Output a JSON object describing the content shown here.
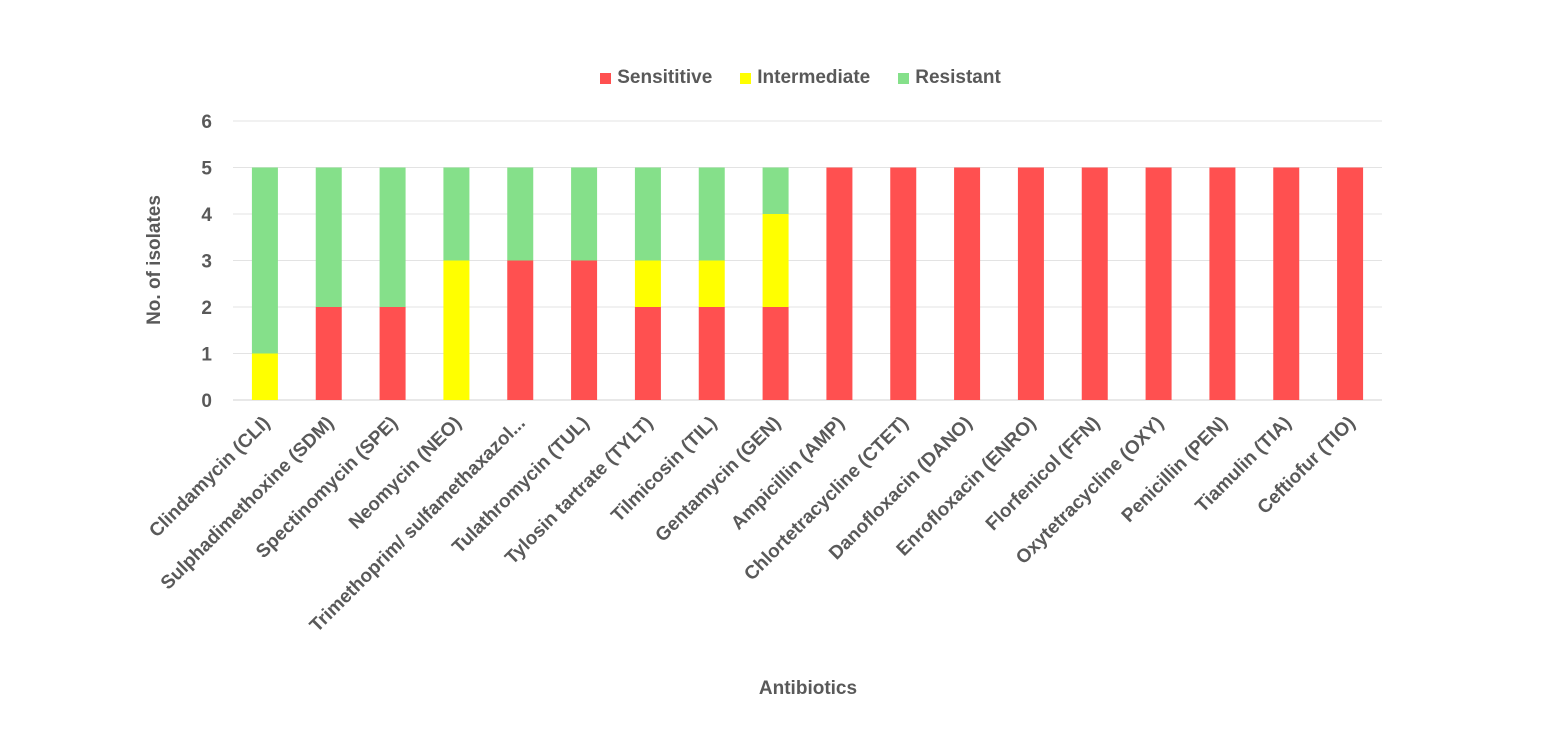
{
  "chart_data": {
    "type": "bar",
    "stacked": true,
    "title": "",
    "xlabel": "Antibiotics",
    "ylabel": "No. of isolates",
    "ylim": [
      0,
      6
    ],
    "yticks": [
      0,
      1,
      2,
      3,
      4,
      5,
      6
    ],
    "grid": true,
    "legend_position": "top",
    "categories": [
      "Clindamycin (CLI)",
      "Sulphadimethoxine (SDM)",
      "Spectinomycin (SPE)",
      "Neomycin (NEO)",
      "Trimethoprim/ sulfamethaxazol...",
      "Tulathromycin (TUL)",
      "Tylosin tartrate (TYLT)",
      "Tilmicosin (TIL)",
      "Gentamycin (GEN)",
      "Ampicillin  (AMP)",
      "Chlortetracycline (CTET)",
      "Danofloxacin (DANO)",
      "Enrofloxacin (ENRO)",
      "Florfenicol (FFN)",
      "Oxytetracycline (OXY)",
      "Penicillin (PEN)",
      "Tiamulin (TIA)",
      "Ceftiofur (TIO)"
    ],
    "series": [
      {
        "name": "Sensititive",
        "color": "#ff5050",
        "values": [
          0,
          2,
          2,
          0,
          3,
          3,
          2,
          2,
          2,
          5,
          5,
          5,
          5,
          5,
          5,
          5,
          5,
          5
        ]
      },
      {
        "name": "Intermediate",
        "color": "#ffff00",
        "values": [
          1,
          0,
          0,
          3,
          0,
          0,
          1,
          1,
          2,
          0,
          0,
          0,
          0,
          0,
          0,
          0,
          0,
          0
        ]
      },
      {
        "name": "Resistant",
        "color": "#85e08a",
        "values": [
          4,
          3,
          3,
          2,
          2,
          2,
          2,
          2,
          1,
          0,
          0,
          0,
          0,
          0,
          0,
          0,
          0,
          0
        ]
      }
    ]
  }
}
